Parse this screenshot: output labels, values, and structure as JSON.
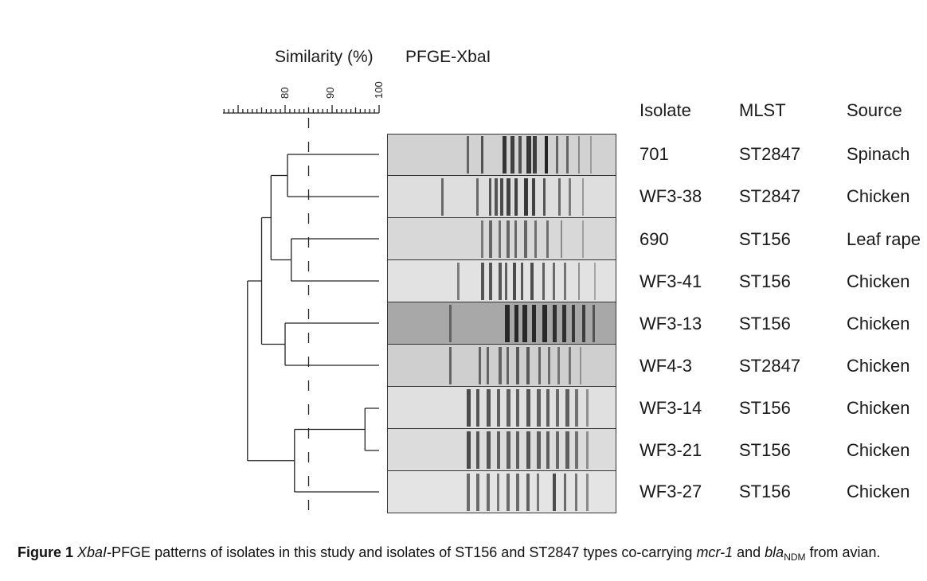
{
  "headers": {
    "similarity": "Similarity (%)",
    "pfge": "PFGE-XbaI"
  },
  "scale": {
    "ticks": [
      {
        "label": "80",
        "value": 80
      },
      {
        "label": "90",
        "value": 90
      },
      {
        "label": "100",
        "value": 100
      }
    ],
    "cutoff_value": 85
  },
  "columns": {
    "isolate": "Isolate",
    "mlst": "MLST",
    "source": "Source"
  },
  "rows": [
    {
      "isolate": "701",
      "mlst": "ST2847",
      "source": "Spinach"
    },
    {
      "isolate": "WF3-38",
      "mlst": "ST2847",
      "source": "Chicken"
    },
    {
      "isolate": "690",
      "mlst": "ST156",
      "source": "Leaf rape"
    },
    {
      "isolate": "WF3-41",
      "mlst": "ST156",
      "source": "Chicken"
    },
    {
      "isolate": "WF3-13",
      "mlst": "ST156",
      "source": "Chicken"
    },
    {
      "isolate": "WF4-3",
      "mlst": "ST2847",
      "source": "Chicken"
    },
    {
      "isolate": "WF3-14",
      "mlst": "ST156",
      "source": "Chicken"
    },
    {
      "isolate": "WF3-21",
      "mlst": "ST156",
      "source": "Chicken"
    },
    {
      "isolate": "WF3-27",
      "mlst": "ST156",
      "source": "Chicken"
    }
  ],
  "caption": {
    "figure_label": "Figure 1",
    "enzyme": "XbaI",
    "text_1": "-PFGE patterns of isolates in this study and isolates of ST156 and ST2847 types co-carrying ",
    "gene_1": "mcr-1",
    "text_2": " and ",
    "gene_2": "bla",
    "gene_2_sub": "NDM",
    "text_3": " from avian."
  },
  "dendrogram": {
    "clusters": [
      {
        "rows": [
          0,
          1
        ],
        "similarity": 80.5
      },
      {
        "rows": [
          2,
          3
        ],
        "similarity": 81.3
      },
      {
        "rows": [
          "c0",
          "c1"
        ],
        "similarity": 77.0
      },
      {
        "rows": [
          4,
          5
        ],
        "similarity": 80.0
      },
      {
        "rows": [
          6,
          7
        ],
        "similarity": 97.0
      },
      {
        "rows": [
          "c4",
          8
        ],
        "similarity": 82.0
      },
      {
        "rows": [
          "c2",
          "c3"
        ],
        "similarity": 75.0
      },
      {
        "rows": [
          "c6",
          "c5"
        ],
        "similarity": 72.0
      }
    ]
  }
}
